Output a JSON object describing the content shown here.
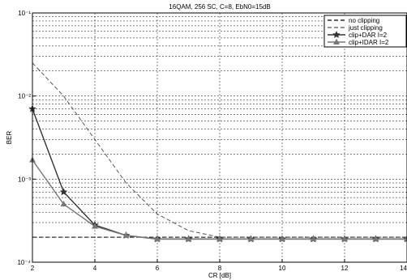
{
  "chart_data": {
    "type": "line",
    "title": "16QAM, 256 SC, C=8, EbN0=15dB",
    "xlabel": "CR [dB]",
    "ylabel": "BER",
    "xlim": [
      2,
      14
    ],
    "ylim": [
      0.0001,
      0.1
    ],
    "yscale": "log",
    "grid": true,
    "legend_position": "top-right",
    "x_ticks": [
      "2",
      "4",
      "6",
      "8",
      "10",
      "12",
      "14"
    ],
    "y_ticks": [
      {
        "value": 0.1,
        "label": "10⁻¹"
      },
      {
        "value": 0.01,
        "label": "10⁻²"
      },
      {
        "value": 0.001,
        "label": "10⁻³"
      },
      {
        "value": 0.0001,
        "label": "10⁻⁴"
      }
    ],
    "series": [
      {
        "name": "no clipping",
        "style": "dashed",
        "color": "#000000",
        "x": [
          2,
          14
        ],
        "y": [
          0.0002,
          0.0002
        ]
      },
      {
        "name": "just clipping",
        "style": "dashed",
        "color": "#555555",
        "x": [
          2,
          3,
          4,
          5,
          6,
          7,
          8,
          9,
          10,
          11,
          12,
          13,
          14
        ],
        "y": [
          0.025,
          0.01,
          0.003,
          0.0009,
          0.00038,
          0.00024,
          0.0002,
          0.0002,
          0.0002,
          0.0002,
          0.0002,
          0.0002,
          0.0002
        ]
      },
      {
        "name": "clip+DAR I=2",
        "style": "solid",
        "marker": "star",
        "color": "#333333",
        "x": [
          2,
          3,
          4,
          5,
          6,
          7,
          8,
          9,
          10,
          11,
          12,
          13,
          14
        ],
        "y": [
          0.007,
          0.0007,
          0.00028,
          0.00021,
          0.00019,
          0.00019,
          0.00019,
          0.00019,
          0.00019,
          0.00019,
          0.00019,
          0.00019,
          0.00019
        ]
      },
      {
        "name": "clip+IDAR I=2",
        "style": "solid",
        "marker": "triangle",
        "color": "#777777",
        "x": [
          2,
          3,
          4,
          5,
          6,
          7,
          8,
          9,
          10,
          11,
          12,
          13,
          14
        ],
        "y": [
          0.0017,
          0.0005,
          0.00027,
          0.00021,
          0.00019,
          0.00019,
          0.00019,
          0.00019,
          0.00019,
          0.00019,
          0.00019,
          0.00019,
          0.00019
        ]
      }
    ]
  }
}
